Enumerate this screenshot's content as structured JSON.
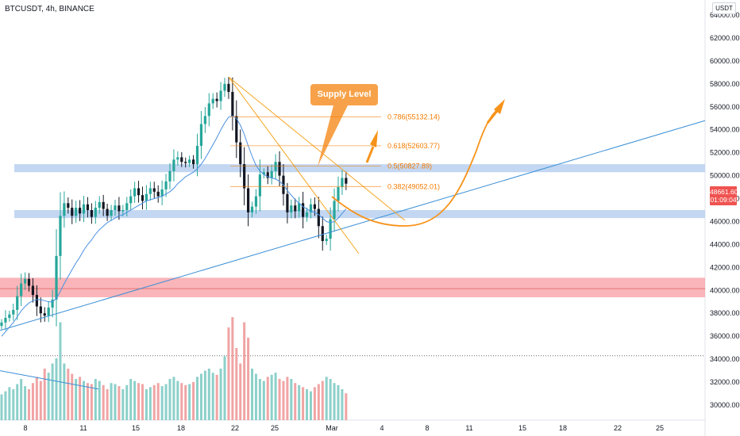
{
  "symbol_title": "BTCUSDT, 4h, BINANCE",
  "currency": "USDT",
  "last_price": "48661.60",
  "countdown": "01:09:04",
  "supply_label": "Supply Level",
  "colors": {
    "up": "#26a69a",
    "down": "#131722",
    "ma": "#4a90e2",
    "fib": "#f57c00",
    "orange": "#f7931a",
    "zone_blue": "#b9d0f0",
    "zone_red": "#f8a8ad",
    "trend_blue": "#3a8fd6"
  },
  "chart_data": {
    "type": "candlestick",
    "timeframe": "4h",
    "y_axis": {
      "ylim": [
        29000,
        65000
      ],
      "tick_labels": [
        "30000.00",
        "32000.00",
        "34000.00",
        "36000.00",
        "38000.00",
        "40000.00",
        "42000.00",
        "44000.00",
        "46000.00",
        "48000.00",
        "50000.00",
        "52000.00",
        "54000.00",
        "56000.00",
        "58000.00",
        "60000.00",
        "62000.00",
        "64000.00"
      ]
    },
    "x_axis": {
      "tick_labels": [
        "8",
        "11",
        "15",
        "18",
        "22",
        "25",
        "Mar",
        "4",
        "8",
        "11",
        "15",
        "18",
        "22",
        "25"
      ]
    },
    "price_series": {
      "close": [
        37200,
        37600,
        37900,
        38300,
        39500,
        40600,
        41000,
        40400,
        39600,
        38600,
        38000,
        37800,
        38500,
        39200,
        43000,
        46500,
        47600,
        47200,
        46500,
        47200,
        46700,
        47500,
        47000,
        46400,
        47200,
        47700,
        47100,
        46500,
        47000,
        47400,
        46900,
        47000,
        47600,
        48200,
        48900,
        48300,
        47800,
        48400,
        48900,
        48600,
        48200,
        48800,
        49500,
        50400,
        51400,
        51600,
        51200,
        51100,
        51400,
        51000,
        52600,
        54500,
        55200,
        56300,
        56700,
        56500,
        57400,
        58000,
        57300,
        55200,
        52900,
        51000,
        48900,
        46800,
        47300,
        48200,
        50100,
        50300,
        49800,
        50400,
        51200,
        50000,
        48400,
        46800,
        47400,
        46900,
        47600,
        46400,
        46800,
        47500,
        47100,
        45600,
        44300,
        44500,
        46200,
        47800,
        49000,
        49800,
        49300
      ],
      "ma_series": [
        36000,
        36400,
        36800,
        37200,
        37700,
        38200,
        38600,
        38900,
        39100,
        39200,
        39200,
        39100,
        39000,
        39000,
        39300,
        39900,
        40600,
        41200,
        41800,
        42400,
        42900,
        43500,
        44000,
        44400,
        44900,
        45300,
        45600,
        45900,
        46100,
        46300,
        46500,
        46600,
        46800,
        47000,
        47200,
        47400,
        47600,
        47800,
        47900,
        48000,
        48100,
        48200,
        48400,
        48600,
        48900,
        49300,
        49600,
        49900,
        50100,
        50300,
        50600,
        51000,
        51500,
        52100,
        52700,
        53300,
        54000,
        54600,
        55100,
        55200,
        55000,
        54400,
        53600,
        52600,
        51700,
        50900,
        50400,
        50100,
        49900,
        49800,
        49700,
        49500,
        49200,
        48700,
        48300,
        47900,
        47600,
        47300,
        47100,
        46900,
        46800,
        46600,
        46300,
        46000,
        45900,
        46000,
        46300,
        46700,
        47100
      ]
    },
    "volume": [
      0.25,
      0.28,
      0.32,
      0.3,
      0.35,
      0.4,
      0.33,
      0.3,
      0.36,
      0.42,
      0.38,
      0.5,
      0.46,
      0.55,
      0.6,
      0.95,
      0.55,
      0.5,
      0.45,
      0.4,
      0.42,
      0.38,
      0.36,
      0.35,
      0.4,
      0.38,
      0.34,
      0.3,
      0.36,
      0.35,
      0.33,
      0.3,
      0.34,
      0.4,
      0.38,
      0.36,
      0.35,
      0.3,
      0.32,
      0.34,
      0.36,
      0.33,
      0.35,
      0.4,
      0.42,
      0.38,
      0.36,
      0.34,
      0.35,
      0.37,
      0.42,
      0.45,
      0.48,
      0.5,
      0.46,
      0.44,
      0.5,
      0.62,
      0.9,
      1.0,
      0.7,
      0.55,
      0.95,
      0.8,
      0.5,
      0.45,
      0.4,
      0.38,
      0.42,
      0.44,
      0.46,
      0.4,
      0.38,
      0.42,
      0.4,
      0.36,
      0.34,
      0.32,
      0.3,
      0.28,
      0.32,
      0.35,
      0.38,
      0.42,
      0.4,
      0.36,
      0.34,
      0.3,
      0.26
    ],
    "fib_levels": [
      {
        "label": "0.786(55132.14)",
        "price": 55132.14
      },
      {
        "label": "0.618(52603.77)",
        "price": 52603.77
      },
      {
        "label": "0.5(50827.89)",
        "price": 50827.89
      },
      {
        "label": "0.382(49052.01)",
        "price": 49052.01
      }
    ],
    "zones": [
      {
        "name": "blue-upper",
        "from": 50300,
        "to": 51000
      },
      {
        "name": "blue-lower",
        "from": 46300,
        "to": 47000
      },
      {
        "name": "red",
        "from": 39400,
        "to": 41100
      }
    ],
    "dotted_line": 34300
  }
}
